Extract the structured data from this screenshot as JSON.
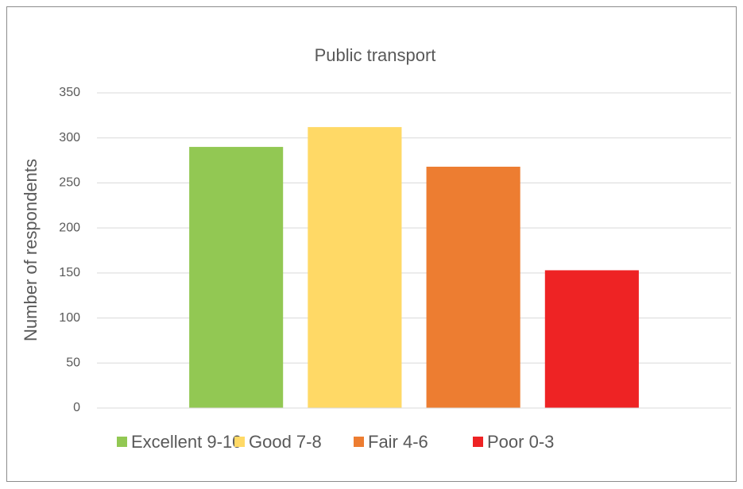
{
  "chart_data": {
    "type": "bar",
    "title": "Public transport",
    "ylabel": "Number of respondents",
    "categories": [
      null
    ],
    "series": [
      {
        "name": "Excellent 9-10",
        "color": "#92c853",
        "values": [
          290
        ]
      },
      {
        "name": "Good 7-8",
        "color": "#ffd966",
        "values": [
          312
        ]
      },
      {
        "name": "Fair 4-6",
        "color": "#ed7d31",
        "values": [
          268
        ]
      },
      {
        "name": "Poor 0-3",
        "color": "#ee2324",
        "values": [
          153
        ]
      }
    ],
    "ylim": [
      0,
      350
    ],
    "yticks": [
      0,
      50,
      100,
      150,
      200,
      250,
      300,
      350
    ],
    "grid": true,
    "legend": "bottom"
  }
}
